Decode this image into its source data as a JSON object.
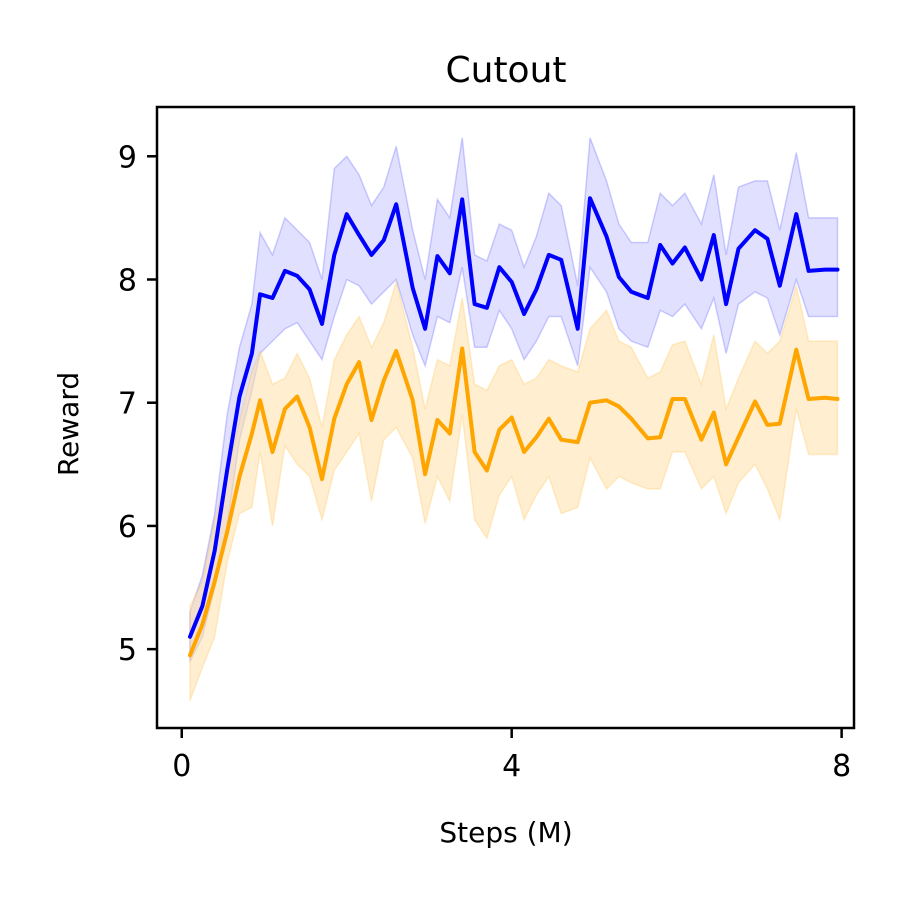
{
  "chart_data": {
    "type": "line",
    "title": "Cutout",
    "xlabel": "Steps (M)",
    "ylabel": "Reward",
    "xlim": [
      -0.3,
      8.15
    ],
    "ylim": [
      4.36,
      9.4
    ],
    "xticks": [
      0,
      4,
      8
    ],
    "yticks": [
      5,
      6,
      7,
      8,
      9
    ],
    "grid": false,
    "legend": "none",
    "x": [
      0.1,
      0.25,
      0.4,
      0.55,
      0.7,
      0.85,
      0.95,
      1.1,
      1.25,
      1.4,
      1.55,
      1.7,
      1.85,
      2.0,
      2.15,
      2.3,
      2.45,
      2.6,
      2.8,
      2.95,
      3.1,
      3.25,
      3.4,
      3.55,
      3.7,
      3.85,
      4.0,
      4.15,
      4.3,
      4.45,
      4.6,
      4.8,
      4.95,
      5.15,
      5.3,
      5.45,
      5.65,
      5.8,
      5.95,
      6.1,
      6.3,
      6.45,
      6.6,
      6.75,
      6.95,
      7.1,
      7.25,
      7.45,
      7.6,
      7.8,
      7.95
    ],
    "series": [
      {
        "color": "#0000ff",
        "band_color": "#c8c8ff",
        "values": [
          5.1,
          5.35,
          5.8,
          6.45,
          7.05,
          7.4,
          7.88,
          7.85,
          8.07,
          8.03,
          7.92,
          7.64,
          8.2,
          8.53,
          8.36,
          8.2,
          8.32,
          8.61,
          7.93,
          7.6,
          8.19,
          8.05,
          8.65,
          7.8,
          7.77,
          8.1,
          7.98,
          7.72,
          7.92,
          8.2,
          8.16,
          7.6,
          8.66,
          8.35,
          8.02,
          7.9,
          7.85,
          8.28,
          8.13,
          8.26,
          8.0,
          8.36,
          7.8,
          8.25,
          8.4,
          8.33,
          7.95,
          8.53,
          8.07,
          8.08,
          8.08
        ],
        "lower": [
          4.9,
          5.1,
          5.5,
          6.0,
          6.7,
          7.1,
          7.4,
          7.5,
          7.6,
          7.65,
          7.5,
          7.35,
          7.7,
          8.0,
          7.95,
          7.8,
          7.9,
          8.0,
          7.55,
          7.3,
          7.7,
          7.65,
          8.1,
          7.45,
          7.45,
          7.75,
          7.6,
          7.35,
          7.5,
          7.7,
          7.7,
          7.3,
          8.1,
          7.9,
          7.6,
          7.5,
          7.45,
          7.75,
          7.7,
          7.8,
          7.6,
          7.85,
          7.4,
          7.8,
          7.9,
          7.85,
          7.55,
          8.0,
          7.7,
          7.7,
          7.7
        ],
        "upper": [
          5.3,
          5.6,
          6.1,
          6.9,
          7.45,
          7.8,
          8.38,
          8.2,
          8.5,
          8.4,
          8.3,
          8.0,
          8.9,
          9.0,
          8.85,
          8.6,
          8.75,
          9.08,
          8.4,
          8.0,
          8.65,
          8.5,
          9.15,
          8.2,
          8.15,
          8.45,
          8.4,
          8.1,
          8.35,
          8.7,
          8.6,
          7.95,
          9.15,
          8.8,
          8.45,
          8.3,
          8.3,
          8.7,
          8.6,
          8.7,
          8.45,
          8.85,
          8.2,
          8.75,
          8.8,
          8.8,
          8.4,
          9.03,
          8.5,
          8.5,
          8.5
        ]
      },
      {
        "color": "#ffa500",
        "band_color": "#ffe0a8",
        "values": [
          4.95,
          5.2,
          5.55,
          5.95,
          6.4,
          6.75,
          7.02,
          6.6,
          6.95,
          7.05,
          6.8,
          6.38,
          6.87,
          7.15,
          7.33,
          6.86,
          7.18,
          7.42,
          7.02,
          6.42,
          6.86,
          6.75,
          7.44,
          6.6,
          6.45,
          6.78,
          6.88,
          6.6,
          6.72,
          6.87,
          6.7,
          6.68,
          7.0,
          7.02,
          6.97,
          6.87,
          6.71,
          6.72,
          7.03,
          7.03,
          6.7,
          6.92,
          6.5,
          6.72,
          7.01,
          6.82,
          6.83,
          7.43,
          7.03,
          7.04,
          7.03
        ],
        "lower": [
          4.58,
          4.85,
          5.1,
          5.7,
          6.1,
          6.15,
          6.6,
          6.0,
          6.65,
          6.5,
          6.4,
          6.05,
          6.45,
          6.6,
          6.75,
          6.2,
          6.7,
          6.8,
          6.55,
          6.02,
          6.4,
          6.2,
          6.9,
          6.05,
          5.9,
          6.25,
          6.4,
          6.05,
          6.25,
          6.4,
          6.1,
          6.15,
          6.55,
          6.3,
          6.4,
          6.35,
          6.3,
          6.3,
          6.6,
          6.6,
          6.3,
          6.4,
          6.1,
          6.35,
          6.5,
          6.3,
          6.05,
          6.95,
          6.58,
          6.58,
          6.58
        ],
        "upper": [
          5.35,
          5.55,
          6.05,
          6.4,
          6.85,
          7.25,
          7.42,
          7.15,
          7.2,
          7.4,
          7.2,
          6.8,
          7.35,
          7.55,
          7.7,
          7.45,
          7.65,
          7.98,
          7.45,
          6.95,
          7.35,
          7.3,
          7.85,
          7.15,
          7.1,
          7.3,
          7.35,
          7.15,
          7.2,
          7.35,
          7.3,
          7.25,
          7.6,
          7.75,
          7.5,
          7.45,
          7.2,
          7.25,
          7.47,
          7.5,
          7.15,
          7.55,
          6.95,
          7.2,
          7.5,
          7.4,
          7.5,
          7.95,
          7.5,
          7.5,
          7.5
        ]
      }
    ]
  }
}
